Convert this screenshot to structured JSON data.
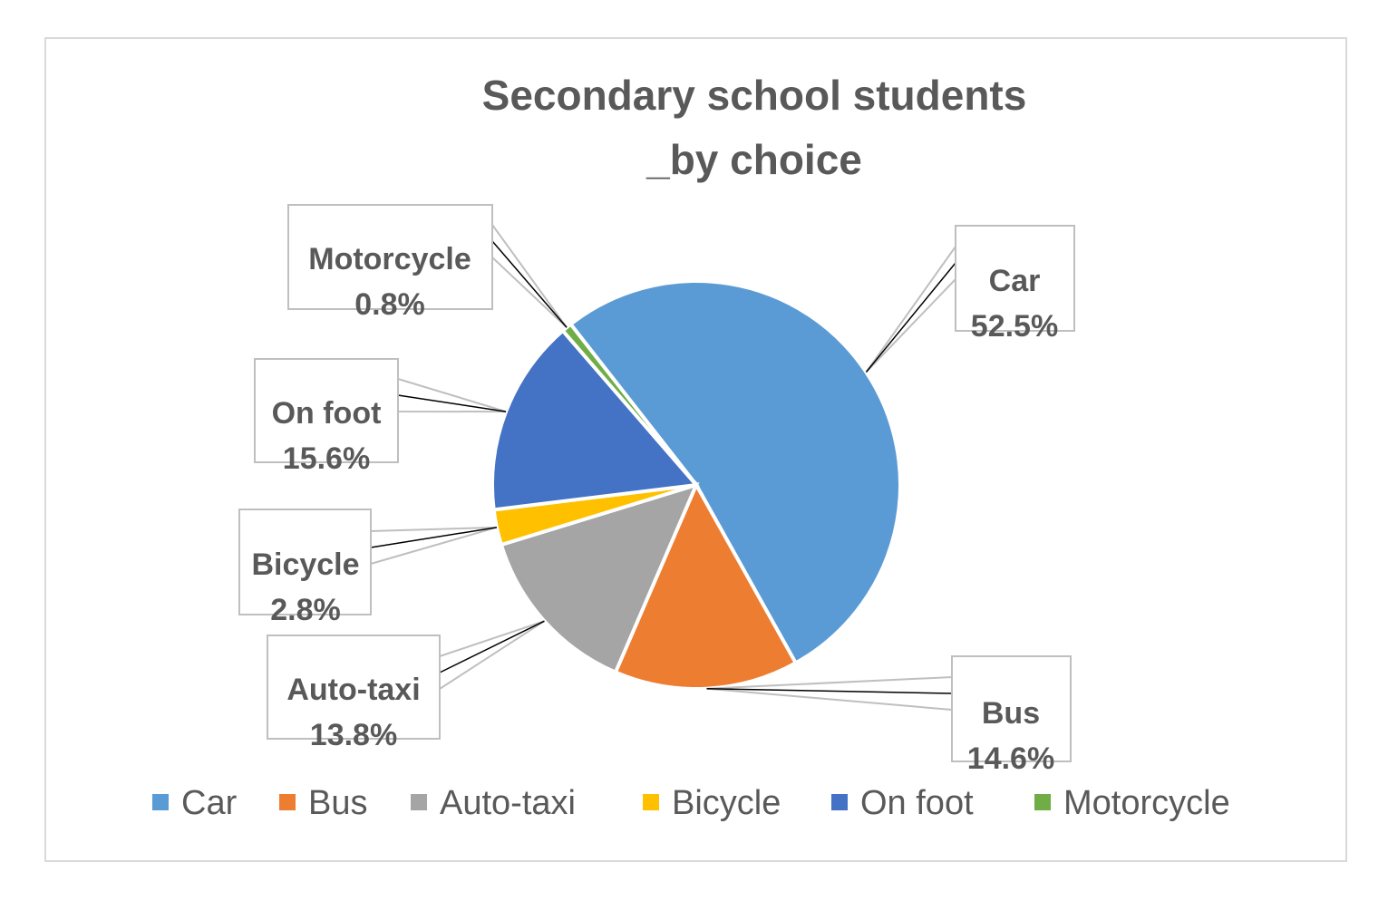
{
  "chart_data": {
    "type": "pie",
    "title": "Secondary school students _by choice",
    "title_lines": [
      "Secondary school students",
      "_by choice"
    ],
    "slices": [
      {
        "name": "Car",
        "value": 52.5,
        "label": "52.5%",
        "color": "#5b9bd5"
      },
      {
        "name": "Bus",
        "value": 14.6,
        "label": "14.6%",
        "color": "#ed7d31"
      },
      {
        "name": "Auto-taxi",
        "value": 13.8,
        "label": "13.8%",
        "color": "#a5a5a5"
      },
      {
        "name": "Bicycle",
        "value": 2.8,
        "label": "2.8%",
        "color": "#ffc000"
      },
      {
        "name": "On foot",
        "value": 15.6,
        "label": "15.6%",
        "color": "#4472c4"
      },
      {
        "name": "Motorcycle",
        "value": 0.8,
        "label": "0.8%",
        "color": "#70ad47"
      }
    ],
    "legend": {
      "position": "bottom",
      "entries": [
        "Car",
        "Bus",
        "Auto-taxi",
        "Bicycle",
        "On foot",
        "Motorcycle"
      ]
    }
  }
}
